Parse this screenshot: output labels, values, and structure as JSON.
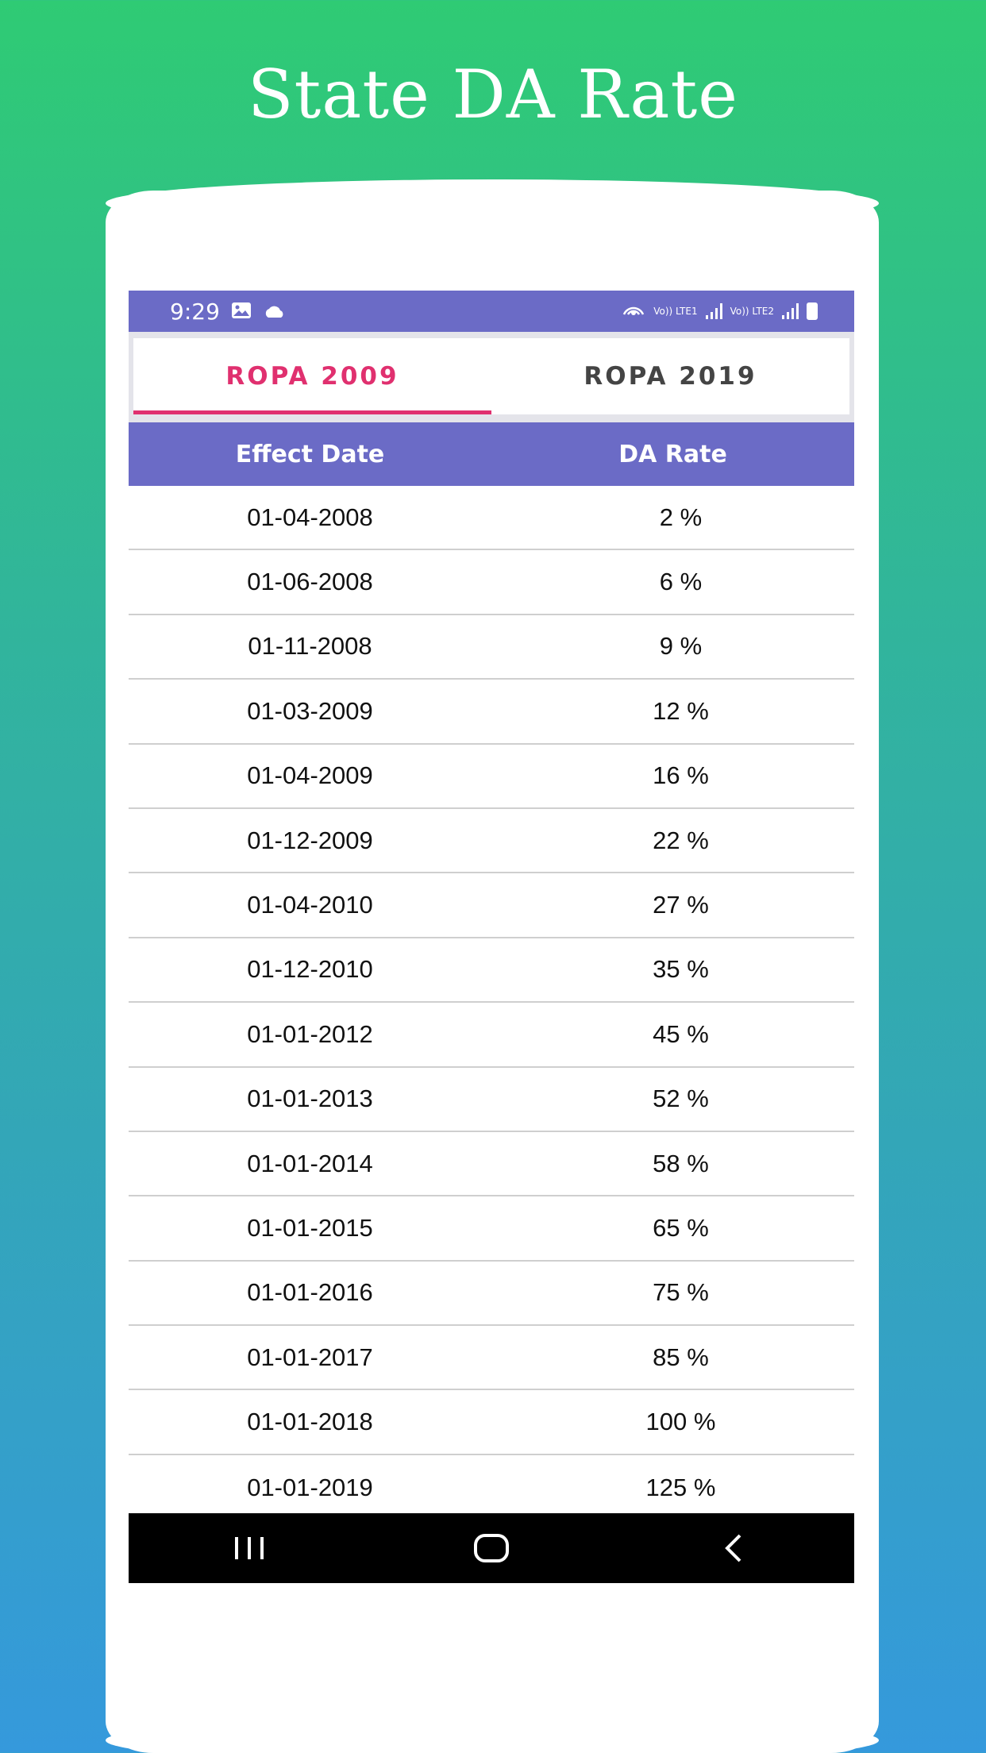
{
  "header": {
    "title": "State DA Rate"
  },
  "statusbar": {
    "time": "9:29",
    "sim1": "Vo)) LTE1",
    "sim2": "Vo)) LTE2"
  },
  "tabs": [
    {
      "label": "ROPA 2009",
      "active": true
    },
    {
      "label": "ROPA 2019",
      "active": false
    }
  ],
  "table": {
    "headers": [
      "Effect Date",
      "DA Rate"
    ],
    "rows": [
      {
        "date": "01-04-2008",
        "rate": "2 %"
      },
      {
        "date": "01-06-2008",
        "rate": "6 %"
      },
      {
        "date": "01-11-2008",
        "rate": "9 %"
      },
      {
        "date": "01-03-2009",
        "rate": "12 %"
      },
      {
        "date": "01-04-2009",
        "rate": "16 %"
      },
      {
        "date": "01-12-2009",
        "rate": "22 %"
      },
      {
        "date": "01-04-2010",
        "rate": "27 %"
      },
      {
        "date": "01-12-2010",
        "rate": "35 %"
      },
      {
        "date": "01-01-2012",
        "rate": "45 %"
      },
      {
        "date": "01-01-2013",
        "rate": "52 %"
      },
      {
        "date": "01-01-2014",
        "rate": "58 %"
      },
      {
        "date": "01-01-2015",
        "rate": "65 %"
      },
      {
        "date": "01-01-2016",
        "rate": "75 %"
      },
      {
        "date": "01-01-2017",
        "rate": "85 %"
      },
      {
        "date": "01-01-2018",
        "rate": "100 %"
      },
      {
        "date": "01-01-2019",
        "rate": "125 %"
      }
    ]
  },
  "colors": {
    "accent": "#6b6bc6",
    "active_tab": "#e0306f",
    "gradient_top": "#2fcb74",
    "gradient_bottom": "#3599dc"
  },
  "icons": {
    "status_left": [
      "image-icon",
      "cloud-icon"
    ],
    "status_right": [
      "hotspot-icon",
      "signal-icon",
      "signal-icon",
      "battery-icon"
    ],
    "navbar": [
      "recent-apps-icon",
      "home-icon",
      "back-icon"
    ]
  }
}
